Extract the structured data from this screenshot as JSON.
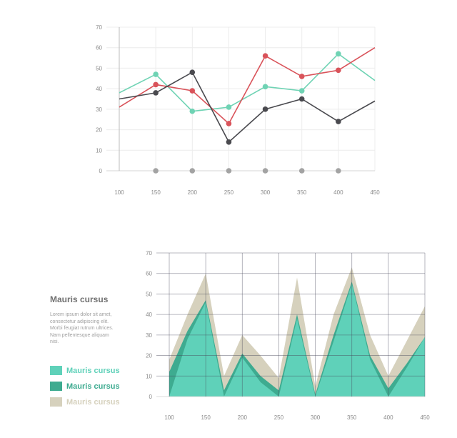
{
  "charts": [
    {
      "type": "line",
      "x": [
        100,
        150,
        200,
        250,
        300,
        350,
        400,
        450
      ],
      "yticks": [
        0,
        10,
        20,
        30,
        40,
        50,
        60,
        70
      ],
      "ylim": [
        0,
        70
      ],
      "xlim": [
        100,
        450
      ],
      "grid": true,
      "series": [
        {
          "color": "#6fd3b4",
          "x": [
            100,
            150,
            200,
            250,
            300,
            350,
            400,
            450
          ],
          "values": [
            38,
            47,
            29,
            31,
            41,
            39,
            57,
            44
          ],
          "markers": [
            150,
            200,
            250,
            300,
            350,
            400
          ]
        },
        {
          "color": "#d9535a",
          "x": [
            100,
            150,
            200,
            250,
            300,
            350,
            400,
            450
          ],
          "values": [
            31,
            42,
            39,
            23,
            56,
            46,
            49,
            60
          ],
          "markers": [
            150,
            200,
            250,
            300,
            350,
            400
          ]
        },
        {
          "color": "#4a4a4f",
          "x": [
            100,
            150,
            200,
            250,
            300,
            350,
            400,
            450
          ],
          "values": [
            35,
            38,
            48,
            14,
            30,
            35,
            24,
            34
          ],
          "markers": [
            150,
            200,
            250,
            300,
            350,
            400
          ]
        },
        {
          "color": "#a3a3a3",
          "x": [
            150,
            200,
            250,
            300,
            350,
            400
          ],
          "values": [
            0,
            0,
            0,
            0,
            0,
            0
          ],
          "markers": [
            150,
            200,
            250,
            300,
            350,
            400
          ],
          "line": false
        }
      ]
    },
    {
      "type": "area",
      "x": [
        100,
        125,
        150,
        175,
        200,
        225,
        250,
        275,
        300,
        325,
        350,
        375,
        400,
        425,
        450
      ],
      "yticks": [
        0,
        10,
        20,
        30,
        40,
        50,
        60,
        70
      ],
      "ylim": [
        0,
        70
      ],
      "xlim": [
        100,
        450
      ],
      "xticks": [
        100,
        150,
        200,
        250,
        300,
        350,
        400,
        450
      ],
      "grid": true,
      "series": [
        {
          "name": "Mauris cursus",
          "color": "#d6d1bd",
          "values": [
            18,
            40,
            60,
            10,
            30,
            20,
            9,
            58,
            5,
            40,
            63,
            30,
            10,
            27,
            44
          ]
        },
        {
          "name": "Mauris cursus",
          "color": "#3eab90",
          "values": [
            12,
            32,
            47,
            3,
            21,
            10,
            3,
            40,
            1,
            30,
            56,
            20,
            4,
            16,
            29
          ]
        },
        {
          "name": "Mauris cursus",
          "color": "#5fd1b9",
          "values": [
            0,
            28,
            46,
            0,
            19,
            7,
            0,
            38,
            0,
            27,
            55,
            18,
            0,
            14,
            29
          ]
        }
      ]
    }
  ],
  "legend": {
    "title": "Mauris cursus",
    "text": [
      "Lorem ipsum dolor sit amet,",
      "consectetur adipiscing elit.",
      "Morbi feugiat rutrum ultrices.",
      "Nam pellentesque aliquam",
      "nisi."
    ],
    "items": [
      {
        "label": "Mauris cursus",
        "color": "#5fd1b9"
      },
      {
        "label": "Mauris cursus",
        "color": "#3eab90"
      },
      {
        "label": "Mauris cursus",
        "color": "#d6d1bd"
      }
    ]
  }
}
